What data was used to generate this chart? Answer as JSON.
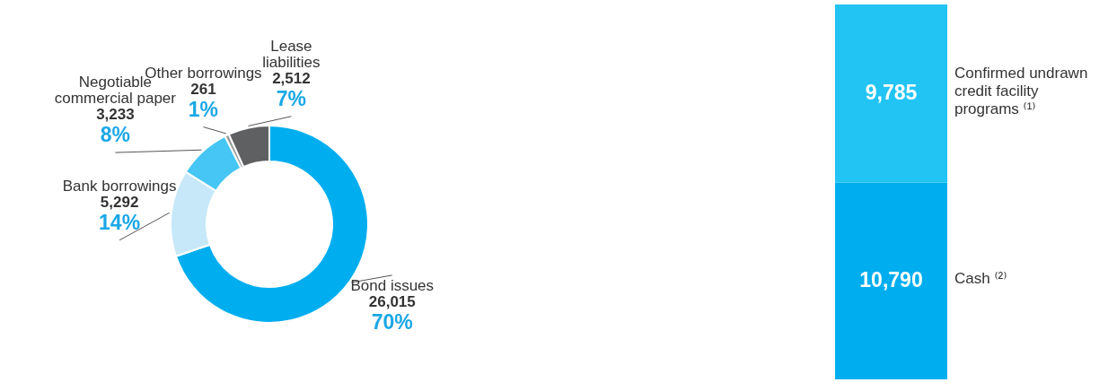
{
  "chart_data": [
    {
      "type": "donut",
      "categories": [
        "Bond issues",
        "Bank borrowings",
        "Negotiable commercial paper",
        "Other borrowings",
        "Lease liabilities"
      ],
      "values": [
        26015,
        5292,
        3233,
        261,
        2512
      ],
      "colors": [
        "#00aeef",
        "#c6e8f8",
        "#45c6f4",
        "#9b9b9b",
        "#5f6062"
      ],
      "value_labels": [
        "26,015",
        "5,292",
        "3,233",
        "261",
        "2,512"
      ],
      "annotations": [
        "70%",
        "14%",
        "8%",
        "1%",
        "7%"
      ],
      "legend": false
    },
    {
      "type": "bar",
      "stacked": true,
      "categories": [
        null
      ],
      "tick_labels": false,
      "legend": false,
      "series": [
        {
          "name": "Cash ⁽²⁾",
          "color": "#00aeef",
          "values": [
            10790
          ],
          "value_labels": [
            "10,790"
          ]
        },
        {
          "name": "Confirmed undrawn credit facility programs ⁽¹⁾",
          "color": "#22c4f4",
          "values": [
            9785
          ],
          "value_labels": [
            "9,785"
          ]
        }
      ]
    }
  ]
}
